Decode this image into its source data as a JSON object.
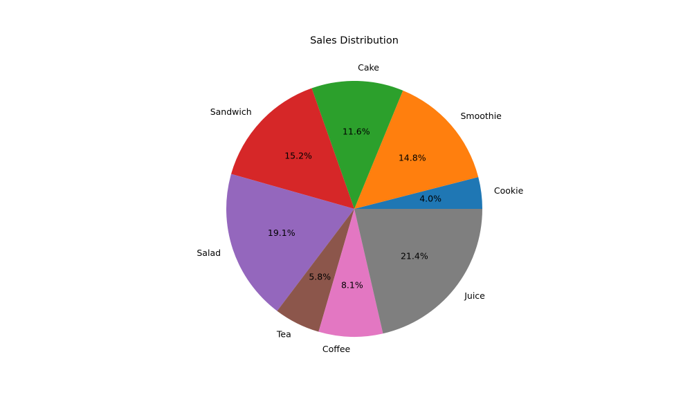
{
  "chart_data": {
    "type": "pie",
    "title": "Sales Distribution",
    "slices": [
      {
        "label": "Cookie",
        "value": 4.0,
        "pct_label": "4.0%",
        "color": "#1f77b4"
      },
      {
        "label": "Smoothie",
        "value": 14.8,
        "pct_label": "14.8%",
        "color": "#ff7f0e"
      },
      {
        "label": "Cake",
        "value": 11.6,
        "pct_label": "11.6%",
        "color": "#2ca02c"
      },
      {
        "label": "Sandwich",
        "value": 15.2,
        "pct_label": "15.2%",
        "color": "#d62728"
      },
      {
        "label": "Salad",
        "value": 19.1,
        "pct_label": "19.1%",
        "color": "#9467bd"
      },
      {
        "label": "Tea",
        "value": 5.8,
        "pct_label": "5.8%",
        "color": "#8c564b"
      },
      {
        "label": "Coffee",
        "value": 8.1,
        "pct_label": "8.1%",
        "color": "#e377c2"
      },
      {
        "label": "Juice",
        "value": 21.4,
        "pct_label": "21.4%",
        "color": "#7f7f7f"
      }
    ],
    "start_angle": 0,
    "direction": "counterclockwise",
    "legend": "none"
  }
}
